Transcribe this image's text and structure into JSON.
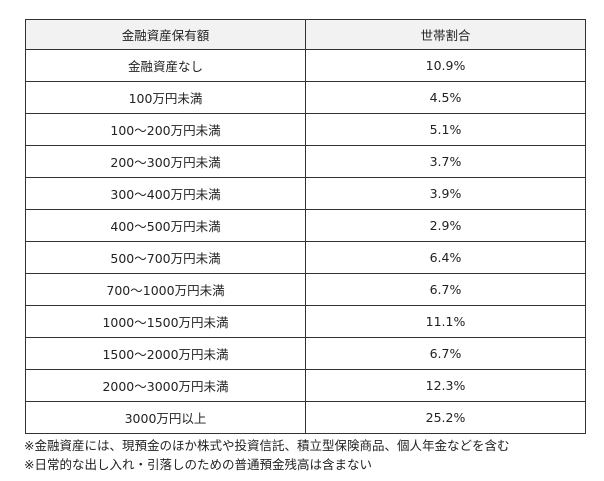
{
  "table": {
    "headers": [
      "金融資産保有額",
      "世帯割合"
    ],
    "rows": [
      [
        "金融資産なし",
        "10.9%"
      ],
      [
        "100万円未満",
        "4.5%"
      ],
      [
        "100～200万円未満",
        "5.1%"
      ],
      [
        "200～300万円未満",
        "3.7%"
      ],
      [
        "300～400万円未満",
        "3.9%"
      ],
      [
        "400～500万円未満",
        "2.9%"
      ],
      [
        "500～700万円未満",
        "6.4%"
      ],
      [
        "700～1000万円未満",
        "6.7%"
      ],
      [
        "1000～1500万円未満",
        "11.1%"
      ],
      [
        "1500～2000万円未満",
        "6.7%"
      ],
      [
        "2000～3000万円未満",
        "12.3%"
      ],
      [
        "3000万円以上",
        "25.2%"
      ]
    ]
  },
  "notes": [
    "※金融資産には、現預金のほか株式や投資信託、積立型保険商品、個人年金などを含む",
    "※日常的な出し入れ・引落しのための普通預金残高は含まない"
  ]
}
